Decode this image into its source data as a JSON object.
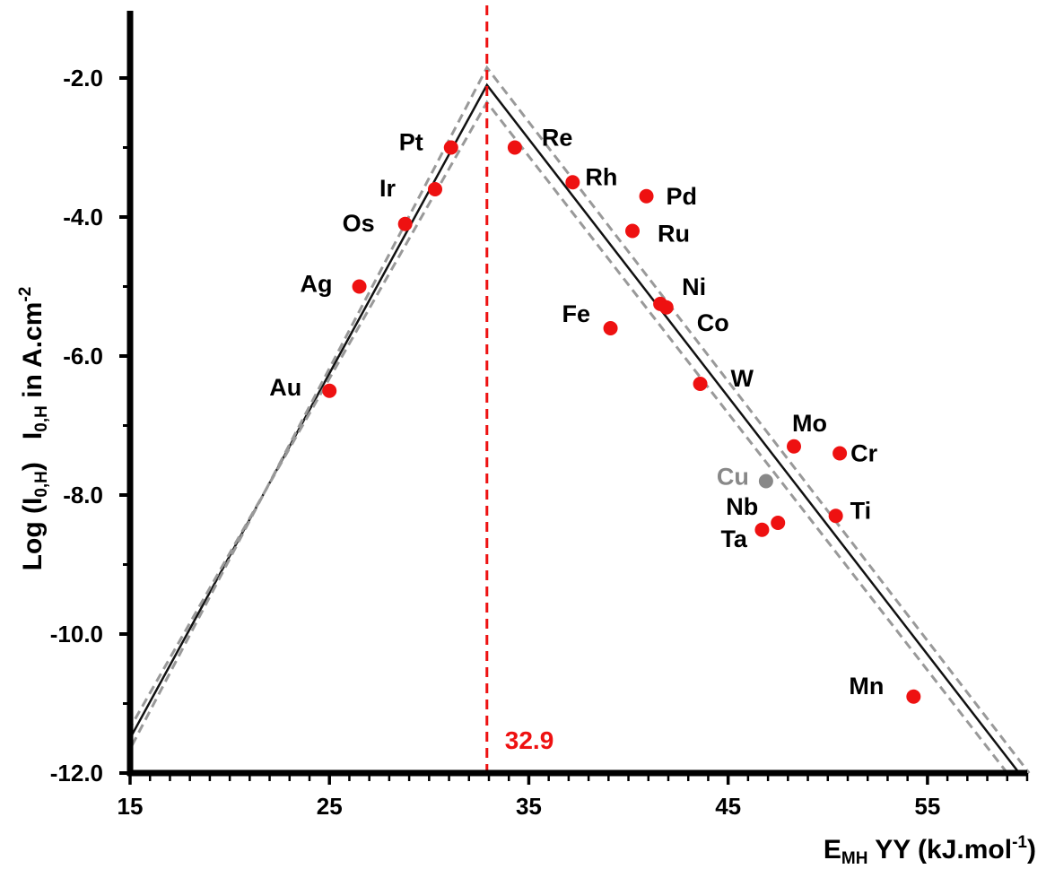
{
  "chart_data": {
    "type": "scatter",
    "title": "",
    "xlabel": {
      "main": "E",
      "sub": "MH",
      "after": " YY (kJ.mol",
      "sup": "-1",
      "close": ")"
    },
    "ylabel": {
      "a": "Log (I",
      "a_sub": "0,H",
      "b": ")   I",
      "b_sub": "0,H",
      "c": " in A.cm",
      "c_sup": "-2"
    },
    "xlim": [
      15,
      60
    ],
    "ylim": [
      -12,
      -1
    ],
    "x_ticks": [
      15,
      25,
      35,
      45,
      55
    ],
    "x_tick_labels": [
      "15",
      "25",
      "35",
      "45",
      "55"
    ],
    "y_ticks": [
      -2,
      -4,
      -6,
      -8,
      -10,
      -12
    ],
    "y_tick_labels": [
      "-2.0",
      "-4.0",
      "-6.0",
      "-8.0",
      "-10.0",
      "-12.0"
    ],
    "grid": false,
    "vline": {
      "x": 32.9,
      "label": "32.9",
      "color": "#ee1111"
    },
    "fit_lines": [
      {
        "name": "",
        "style": "solid",
        "color": "#111111",
        "points": [
          [
            15,
            -11.5
          ],
          [
            32.9,
            -2.1
          ],
          [
            59.6,
            -12.0
          ]
        ]
      },
      {
        "name": "",
        "style": "dashed",
        "color": "#999999",
        "points": [
          [
            15.1,
            -11.6
          ],
          [
            32.9,
            -1.85
          ],
          [
            60.1,
            -12.0
          ]
        ]
      },
      {
        "name": "",
        "style": "dashed",
        "color": "#999999",
        "points": [
          [
            14.9,
            -11.4
          ],
          [
            32.9,
            -2.35
          ],
          [
            59.0,
            -12.0
          ]
        ]
      }
    ],
    "points": [
      {
        "label": "Pt",
        "x": 31.1,
        "y": -3.0,
        "color": "#ee1111"
      },
      {
        "label": "Ir",
        "x": 30.3,
        "y": -3.6,
        "color": "#ee1111"
      },
      {
        "label": "Os",
        "x": 28.8,
        "y": -4.1,
        "color": "#ee1111"
      },
      {
        "label": "Ag",
        "x": 26.5,
        "y": -5.0,
        "color": "#ee1111"
      },
      {
        "label": "Au",
        "x": 25.0,
        "y": -6.5,
        "color": "#ee1111"
      },
      {
        "label": "Re",
        "x": 34.3,
        "y": -3.0,
        "color": "#ee1111"
      },
      {
        "label": "Rh",
        "x": 37.2,
        "y": -3.5,
        "color": "#ee1111"
      },
      {
        "label": "Pd",
        "x": 40.9,
        "y": -3.7,
        "color": "#ee1111"
      },
      {
        "label": "Ru",
        "x": 40.2,
        "y": -4.2,
        "color": "#ee1111"
      },
      {
        "label": "Ni",
        "x": 41.6,
        "y": -5.25,
        "color": "#ee1111"
      },
      {
        "label": "Co",
        "x": 41.9,
        "y": -5.3,
        "color": "#ee1111"
      },
      {
        "label": "Fe",
        "x": 39.1,
        "y": -5.6,
        "color": "#ee1111"
      },
      {
        "label": "W",
        "x": 43.6,
        "y": -6.4,
        "color": "#ee1111"
      },
      {
        "label": "Mo",
        "x": 48.3,
        "y": -7.3,
        "color": "#ee1111"
      },
      {
        "label": "Cr",
        "x": 50.6,
        "y": -7.4,
        "color": "#ee1111"
      },
      {
        "label": "Cu",
        "x": 46.9,
        "y": -7.8,
        "color": "#888888"
      },
      {
        "label": "Ti",
        "x": 50.4,
        "y": -8.3,
        "color": "#ee1111"
      },
      {
        "label": "Nb",
        "x": 47.5,
        "y": -8.4,
        "color": "#ee1111"
      },
      {
        "label": "Ta",
        "x": 46.7,
        "y": -8.5,
        "color": "#ee1111"
      },
      {
        "label": "Mn",
        "x": 54.3,
        "y": -10.9,
        "color": "#ee1111"
      }
    ]
  }
}
